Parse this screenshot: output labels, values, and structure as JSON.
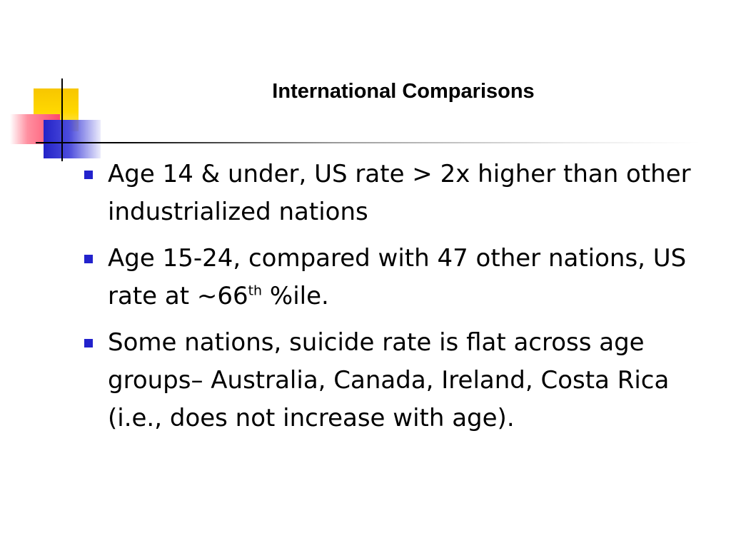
{
  "slide": {
    "title": "International Comparisons",
    "bullets": [
      {
        "text": "Age 14 & under, US rate > 2x higher than other industrialized nations"
      },
      {
        "text_before": "Age 15-24, compared with 47 other nations, US rate at ~66",
        "superscript": "th",
        "text_after": " %ile."
      },
      {
        "text": "Some nations, suicide rate is flat across age groups– Australia, Canada, Ireland, Costa Rica (i.e., does not increase with age)."
      }
    ]
  },
  "colors": {
    "bullet_marker": "#2222cc",
    "logo_yellow": "#ffd800",
    "logo_red": "#ff4a6a",
    "logo_blue": "#2323c8"
  },
  "icons": {
    "logo": "overlapping-squares-logo",
    "bullet": "square-bullet-icon"
  }
}
